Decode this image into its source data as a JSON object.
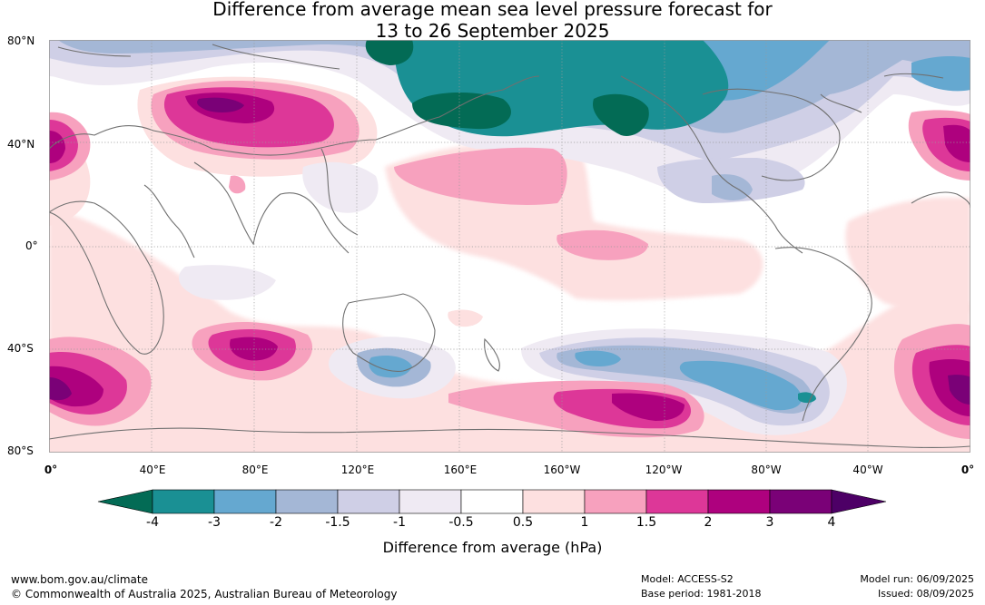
{
  "title_line1": "Difference from average mean sea level pressure forecast for",
  "title_line2": "13 to 26 September 2025",
  "lat_labels": [
    "80°N",
    "40°N",
    "0°",
    "40°S",
    "80°S"
  ],
  "lon_labels": [
    "0°",
    "40°E",
    "80°E",
    "120°E",
    "160°E",
    "160°W",
    "120°W",
    "80°W",
    "40°W",
    "0°"
  ],
  "colorbar": {
    "colors": [
      "#036b55",
      "#1a9094",
      "#65a8d0",
      "#a4b7d6",
      "#cfcfe6",
      "#efeaf3",
      "#ffffff",
      "#fde0e0",
      "#f7a1be",
      "#dd3798",
      "#ae017e",
      "#7a0177",
      "#4d0066"
    ],
    "ticks": [
      "-4",
      "-3",
      "-2",
      "-1.5",
      "-1",
      "-0.5",
      "0.5",
      "1",
      "1.5",
      "2",
      "3",
      "4"
    ],
    "label": "Difference from average (hPa)"
  },
  "footer": {
    "url": "www.bom.gov.au/climate",
    "copyright": "© Commonwealth of Australia 2025, Australian Bureau of Meteorology",
    "model": "Model: ACCESS-S2",
    "base_period": "Base period: 1981-2018",
    "model_run": "Model run: 06/09/2025",
    "issued": "Issued: 08/09/2025"
  }
}
